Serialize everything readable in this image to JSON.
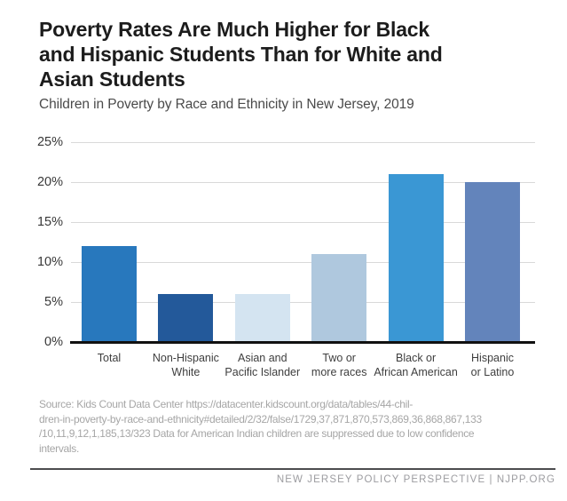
{
  "page": {
    "title_lines": [
      "Poverty Rates Are Much Higher for Black",
      "and Hispanic Students Than for White and",
      "Asian Students"
    ],
    "subtitle": "Children in Poverty by Race and Ethnicity in New Jersey, 2019"
  },
  "chart_data": {
    "type": "bar",
    "title": "Poverty Rates Are Much Higher for Black and Hispanic Students Than for White and Asian Students",
    "subtitle": "Children in Poverty by Race and Ethnicity in New Jersey, 2019",
    "categories": [
      "Total",
      "Non-Hispanic\nWhite",
      "Asian and\nPacific Islander",
      "Two or\nmore races",
      "Black or\nAfrican American",
      "Hispanic\nor Latino"
    ],
    "values": [
      12,
      6,
      6,
      11,
      21,
      20
    ],
    "unit": "%",
    "xlabel": "",
    "ylabel": "",
    "ylim": [
      0,
      25
    ],
    "yticks": [
      0,
      5,
      10,
      15,
      20,
      25
    ],
    "ytick_labels": [
      "0%",
      "5%",
      "10%",
      "15%",
      "20%",
      "25%"
    ],
    "grid": true,
    "legend": "none",
    "bar_colors": [
      "#2878BD",
      "#23599A",
      "#D4E4F1",
      "#AFC8DE",
      "#3A97D4",
      "#6384BB"
    ],
    "gridline_color": "#d9d9d9",
    "baseline_color": "#111111"
  },
  "source": {
    "lines": [
      "Source: Kids Count Data Center https://datacenter.kidscount.org/data/tables/44-chil-",
      "dren-in-poverty-by-race-and-ethnicity#detailed/2/32/false/1729,37,871,870,573,869,36,868,867,133",
      "/10,11,9,12,1,185,13/323 Data for American Indian children are suppressed due to low confidence",
      "intervals."
    ]
  },
  "footer": {
    "text": "NEW JERSEY POLICY PERSPECTIVE | NJPP.ORG"
  }
}
